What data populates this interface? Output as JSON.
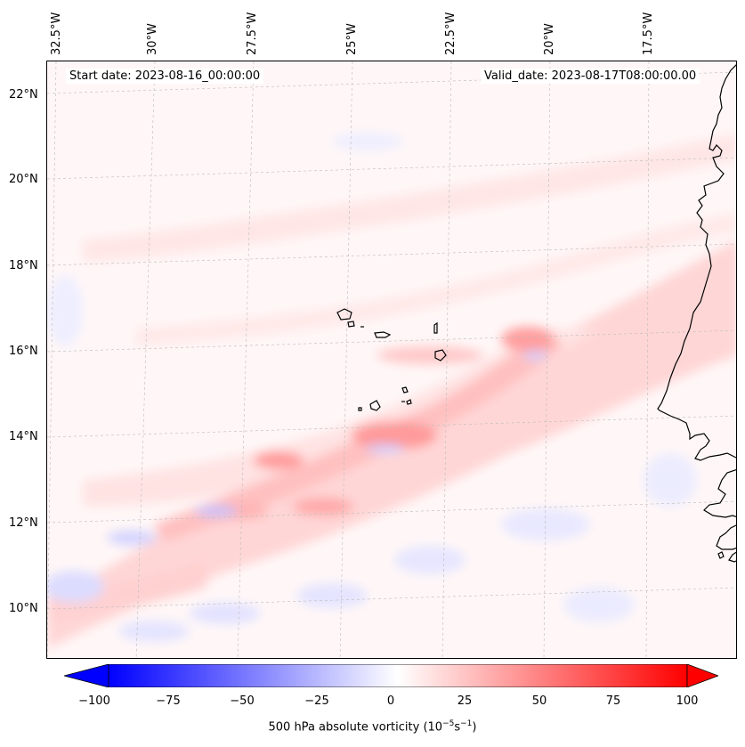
{
  "map": {
    "start_date": "Start date: 2023-08-16_00:00:00",
    "valid_date": "Valid_date: 2023-08-17T08:00:00.00",
    "longitude_labels": [
      "32.5°W",
      "30°W",
      "27.5°W",
      "25°W",
      "22.5°W",
      "20°W",
      "17.5°W"
    ],
    "latitude_labels": [
      "22°N",
      "20°N",
      "18°N",
      "16°N",
      "14°N",
      "12°N",
      "10°N"
    ],
    "colorbar": {
      "ticks": [
        "−100",
        "−75",
        "−50",
        "−25",
        "0",
        "25",
        "50",
        "75",
        "100"
      ],
      "title_main": "500 hPa absolute vorticity (10",
      "title_exp1": "−5",
      "title_mid": "s",
      "title_exp2": "−1",
      "title_end": ")",
      "vmin": -100,
      "vmax": 100,
      "colormap": "bwr"
    }
  }
}
